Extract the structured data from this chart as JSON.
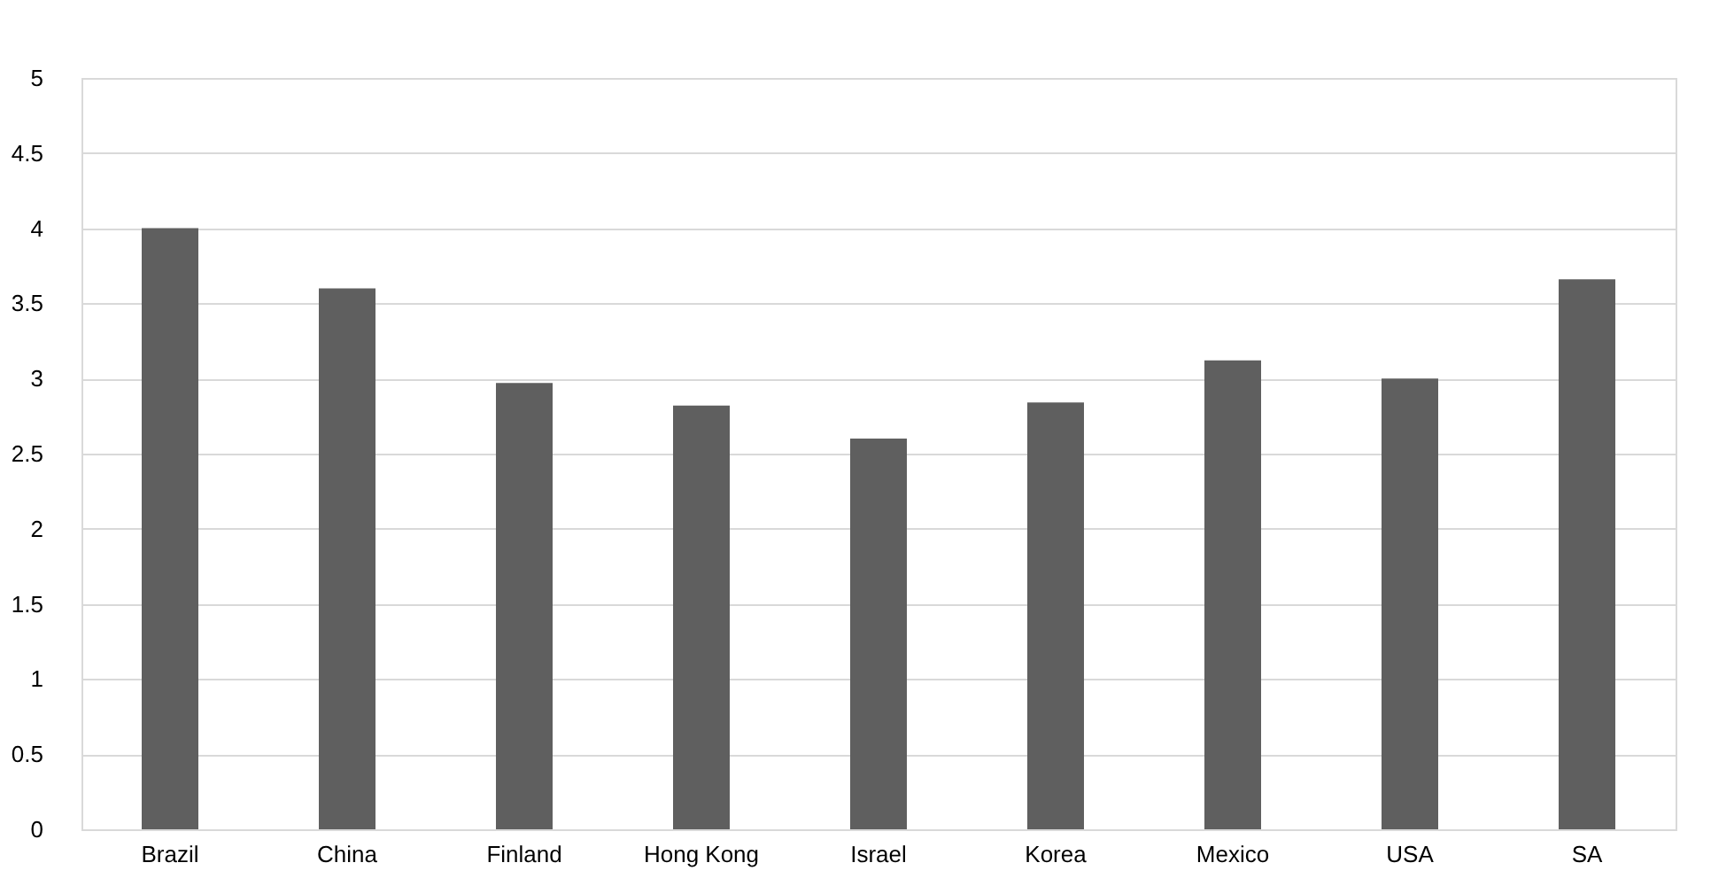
{
  "chart_data": {
    "type": "bar",
    "categories": [
      "Brazil",
      "China",
      "Finland",
      "Hong Kong",
      "Israel",
      "Korea",
      "Mexico",
      "USA",
      "SA"
    ],
    "values": [
      4.0,
      3.6,
      2.97,
      2.82,
      2.6,
      2.84,
      3.12,
      3.0,
      3.66
    ],
    "color": "#5f5f5f",
    "ylim": [
      0,
      5
    ],
    "yticks": [
      0,
      0.5,
      1,
      1.5,
      2,
      2.5,
      3,
      3.5,
      4,
      4.5,
      5
    ],
    "grid": "y"
  }
}
